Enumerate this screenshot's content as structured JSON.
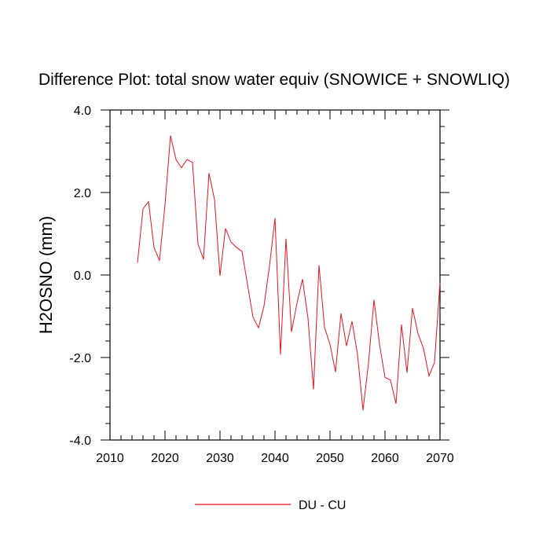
{
  "chart_data": {
    "type": "line",
    "title": "Difference Plot: total snow water equiv (SNOWICE + SNOWLIQ)",
    "xlabel": "",
    "ylabel": "H2OSNO  (mm)",
    "xlim": [
      2010,
      2070
    ],
    "ylim": [
      -4.0,
      4.0
    ],
    "x_ticks": [
      2010,
      2020,
      2030,
      2040,
      2050,
      2060,
      2070
    ],
    "x_tick_labels": [
      "2010",
      "2020",
      "2030",
      "2040",
      "2050",
      "2060",
      "2070"
    ],
    "y_ticks": [
      -4.0,
      -2.0,
      0.0,
      2.0,
      4.0
    ],
    "y_tick_labels": [
      "-4.0",
      "-2.0",
      "0.0",
      "2.0",
      "4.0"
    ],
    "grid": false,
    "legend_position": "bottom-center",
    "series": [
      {
        "name": "DU - CU",
        "color": "#e8141c",
        "x": [
          2015,
          2016,
          2017,
          2018,
          2019,
          2020,
          2021,
          2022,
          2023,
          2024,
          2025,
          2026,
          2027,
          2028,
          2029,
          2030,
          2031,
          2032,
          2033,
          2034,
          2035,
          2036,
          2037,
          2038,
          2039,
          2040,
          2041,
          2042,
          2043,
          2044,
          2045,
          2046,
          2047,
          2048,
          2049,
          2050,
          2051,
          2052,
          2053,
          2054,
          2055,
          2056,
          2057,
          2058,
          2059,
          2060,
          2061,
          2062,
          2063,
          2064,
          2065,
          2066,
          2067,
          2068,
          2069,
          2070
        ],
        "y": [
          0.3,
          1.6,
          1.78,
          0.67,
          0.35,
          1.7,
          3.38,
          2.8,
          2.6,
          2.8,
          2.73,
          0.75,
          0.38,
          2.47,
          1.83,
          -0.02,
          1.13,
          0.8,
          0.67,
          0.57,
          -0.23,
          -1.02,
          -1.28,
          -0.75,
          0.22,
          1.38,
          -1.93,
          0.88,
          -1.38,
          -0.68,
          -0.1,
          -1.05,
          -2.77,
          0.24,
          -1.27,
          -1.68,
          -2.35,
          -0.93,
          -1.72,
          -1.12,
          -1.92,
          -3.28,
          -2.13,
          -0.6,
          -1.68,
          -2.48,
          -2.55,
          -3.12,
          -1.2,
          -2.37,
          -0.8,
          -1.42,
          -1.78,
          -2.45,
          -2.12,
          -0.18
        ]
      }
    ]
  }
}
